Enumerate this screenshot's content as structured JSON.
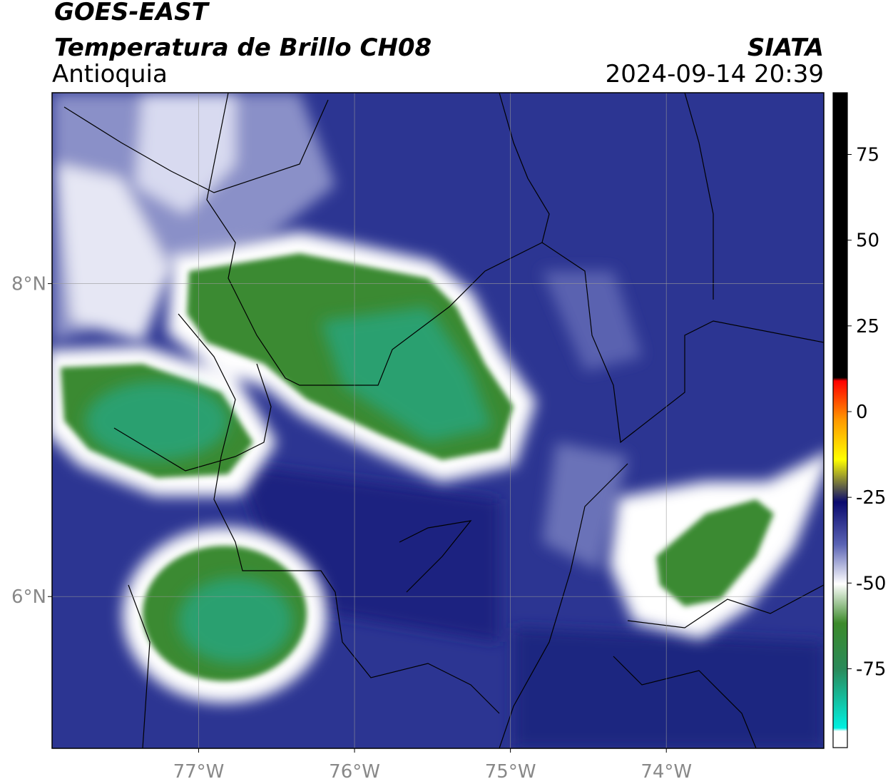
{
  "header": {
    "satellite": "GOES-EAST",
    "product": "Temperatura de Brillo CH08",
    "region": "Antioquia",
    "source": "SIATA",
    "datetime": "2024-09-14 20:39"
  },
  "map": {
    "lon_lim": [
      -77.94,
      -72.99
    ],
    "lat_lim": [
      5.03,
      9.22
    ],
    "lon_ticks": [
      {
        "value": -77,
        "label": "77°W"
      },
      {
        "value": -76,
        "label": "76°W"
      },
      {
        "value": -75,
        "label": "75°W"
      },
      {
        "value": -74,
        "label": "74°W"
      }
    ],
    "lat_ticks": [
      {
        "value": 8,
        "label": "8°N"
      },
      {
        "value": 6,
        "label": "6°N"
      }
    ],
    "grid": true
  },
  "colorbar": {
    "lim": [
      -98,
      93
    ],
    "ticks": [
      75,
      50,
      25,
      0,
      -25,
      -50,
      -75
    ]
  }
}
